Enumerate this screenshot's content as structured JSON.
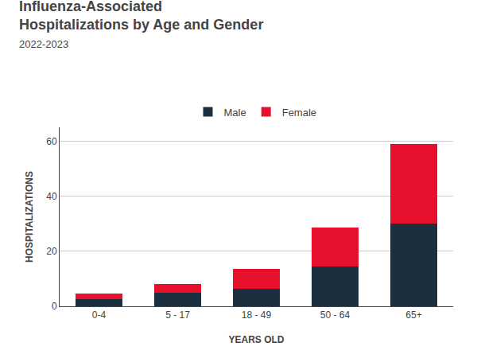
{
  "chart_data": {
    "type": "bar",
    "title": "Influenza-Associated\nHospitalizations by Age and Gender",
    "subtitle": "2022-2023",
    "x_label": "YEARS OLD",
    "y_label": "HOSPITALIZATIONS",
    "categories": [
      "0-4",
      "5 - 17",
      "18 - 49",
      "50 - 64",
      "65+"
    ],
    "series": [
      {
        "name": "Male",
        "color": "#1c2f3e",
        "values": [
          2.5,
          5.0,
          6.5,
          14.5,
          30.0
        ]
      },
      {
        "name": "Female",
        "color": "#e8112d",
        "values": [
          2.0,
          3.0,
          7.0,
          14.0,
          29.0
        ]
      }
    ],
    "stacked": true,
    "ylim": [
      0,
      65
    ],
    "yticks": [
      0,
      20,
      40,
      60
    ],
    "grid": true,
    "legend": "top"
  }
}
